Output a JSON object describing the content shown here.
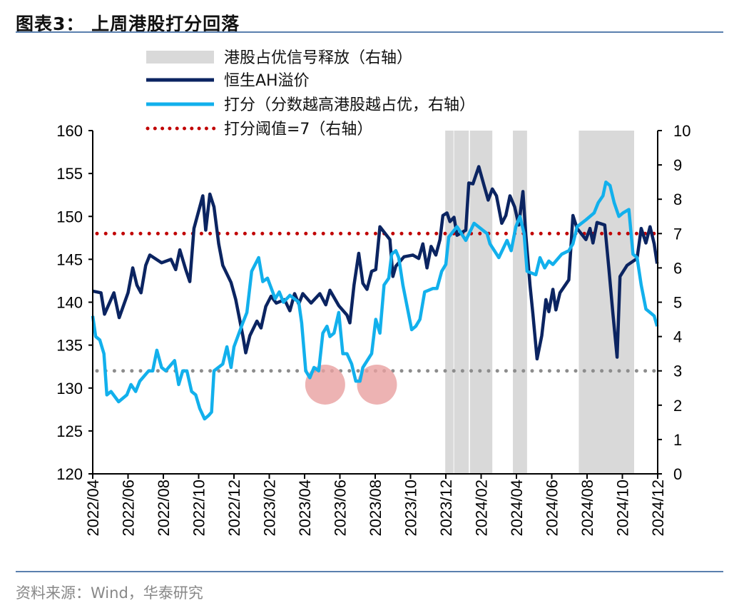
{
  "header": {
    "title": "图表3：  上周港股打分回落"
  },
  "footer": {
    "source": "资料来源：Wind，华泰研究"
  },
  "colors": {
    "ah_premium": "#0b2461",
    "score": "#12b0ec",
    "threshold": "#c00000",
    "low_line": "#8c8c8c",
    "shade": "#d9d9d9",
    "highlight": "#e9a0a0",
    "rule": "#5a7fae"
  },
  "chart_data": {
    "type": "line",
    "title": "",
    "legend_placement": "top",
    "legend": [
      {
        "key": "shade",
        "label": "港股占优信号释放（右轴）"
      },
      {
        "key": "ah",
        "label": "恒生AH溢价"
      },
      {
        "key": "score",
        "label": "打分（分数越高港股越占优，右轴）"
      },
      {
        "key": "threshold",
        "label": "打分阈值=7（右轴）"
      }
    ],
    "x_axis": {
      "range": [
        "2022-04",
        "2024-12"
      ],
      "ticks": [
        "2022/04",
        "2022/06",
        "2022/08",
        "2022/10",
        "2022/12",
        "2023/02",
        "2023/04",
        "2023/06",
        "2023/08",
        "2023/10",
        "2023/12",
        "2024/02",
        "2024/04",
        "2024/06",
        "2024/08",
        "2024/10",
        "2024/12"
      ]
    },
    "y_left": {
      "range": [
        120,
        160
      ],
      "ticks": [
        120,
        125,
        130,
        135,
        140,
        145,
        150,
        155,
        160
      ]
    },
    "y_right": {
      "range": [
        0,
        10
      ],
      "ticks": [
        0,
        1,
        2,
        3,
        4,
        5,
        6,
        7,
        8,
        9,
        10
      ]
    },
    "grid": false,
    "shaded_periods": [
      [
        "2023-11-30",
        "2023-12-14"
      ],
      [
        "2023-12-15",
        "2024-01-10"
      ],
      [
        "2024-01-12",
        "2024-02-20"
      ],
      [
        "2024-03-25",
        "2024-04-19"
      ],
      [
        "2024-07-17",
        "2024-10-21"
      ]
    ],
    "reference_lines": [
      {
        "axis": "right",
        "value": 7,
        "key": "threshold"
      },
      {
        "axis": "right",
        "value": 3,
        "key": "low_line"
      }
    ],
    "highlights": [
      {
        "date": "2023-05-06",
        "value": 2.6,
        "axis": "right"
      },
      {
        "date": "2023-08-04",
        "value": 2.6,
        "axis": "right"
      }
    ],
    "series": [
      {
        "name": "恒生AH溢价",
        "axis": "left",
        "key": "ah",
        "points": [
          [
            "2022-04-01",
            141.3
          ],
          [
            "2022-04-15",
            141.1
          ],
          [
            "2022-04-21",
            138.6
          ],
          [
            "2022-05-07",
            141.1
          ],
          [
            "2022-05-16",
            138.2
          ],
          [
            "2022-06-01",
            141.1
          ],
          [
            "2022-06-09",
            144.0
          ],
          [
            "2022-06-16",
            142.0
          ],
          [
            "2022-06-23",
            141.1
          ],
          [
            "2022-07-01",
            144.3
          ],
          [
            "2022-07-08",
            145.5
          ],
          [
            "2022-07-28",
            144.6
          ],
          [
            "2022-08-14",
            145.0
          ],
          [
            "2022-08-22",
            143.8
          ],
          [
            "2022-08-29",
            146.1
          ],
          [
            "2022-09-09",
            143.8
          ],
          [
            "2022-09-16",
            142.4
          ],
          [
            "2022-09-23",
            148.6
          ],
          [
            "2022-10-08",
            152.4
          ],
          [
            "2022-10-13",
            148.4
          ],
          [
            "2022-10-20",
            152.6
          ],
          [
            "2022-10-27",
            151.1
          ],
          [
            "2022-11-05",
            146.8
          ],
          [
            "2022-11-12",
            144.3
          ],
          [
            "2022-11-26",
            142.3
          ],
          [
            "2022-12-04",
            140.3
          ],
          [
            "2022-12-16",
            136.1
          ],
          [
            "2022-12-21",
            134.1
          ],
          [
            "2022-12-28",
            136.1
          ],
          [
            "2023-01-10",
            137.8
          ],
          [
            "2023-01-17",
            137.0
          ],
          [
            "2023-01-25",
            139.5
          ],
          [
            "2023-02-04",
            140.7
          ],
          [
            "2023-02-13",
            139.9
          ],
          [
            "2023-02-27",
            140.3
          ],
          [
            "2023-03-06",
            139.0
          ],
          [
            "2023-03-14",
            141.0
          ],
          [
            "2023-03-21",
            139.8
          ],
          [
            "2023-03-28",
            141.0
          ],
          [
            "2023-04-12",
            139.9
          ],
          [
            "2023-04-27",
            141.0
          ],
          [
            "2023-05-07",
            139.7
          ],
          [
            "2023-05-14",
            141.4
          ],
          [
            "2023-05-29",
            139.6
          ],
          [
            "2023-06-13",
            138.5
          ],
          [
            "2023-06-18",
            137.6
          ],
          [
            "2023-06-25",
            142.0
          ],
          [
            "2023-07-03",
            145.7
          ],
          [
            "2023-07-10",
            142.2
          ],
          [
            "2023-07-17",
            141.5
          ],
          [
            "2023-07-25",
            143.6
          ],
          [
            "2023-08-02",
            143.8
          ],
          [
            "2023-08-09",
            148.8
          ],
          [
            "2023-08-26",
            147.3
          ],
          [
            "2023-09-01",
            143.0
          ],
          [
            "2023-09-06",
            144.2
          ],
          [
            "2023-09-20",
            145.3
          ],
          [
            "2023-10-05",
            145.5
          ],
          [
            "2023-10-15",
            145.1
          ],
          [
            "2023-10-22",
            146.8
          ],
          [
            "2023-10-29",
            144.0
          ],
          [
            "2023-11-06",
            146.5
          ],
          [
            "2023-11-14",
            145.5
          ],
          [
            "2023-11-21",
            147.3
          ],
          [
            "2023-11-26",
            150.1
          ],
          [
            "2023-12-03",
            150.4
          ],
          [
            "2023-12-08",
            149.4
          ],
          [
            "2023-12-15",
            149.9
          ],
          [
            "2023-12-20",
            147.8
          ],
          [
            "2024-01-05",
            148.4
          ],
          [
            "2024-01-10",
            153.9
          ],
          [
            "2024-01-17",
            153.8
          ],
          [
            "2024-01-27",
            155.8
          ],
          [
            "2024-02-06",
            153.6
          ],
          [
            "2024-02-13",
            151.9
          ],
          [
            "2024-02-20",
            153.2
          ],
          [
            "2024-02-27",
            152.4
          ],
          [
            "2024-03-06",
            149.2
          ],
          [
            "2024-03-13",
            150.1
          ],
          [
            "2024-03-20",
            152.4
          ],
          [
            "2024-03-28",
            151.1
          ],
          [
            "2024-04-05",
            149.0
          ],
          [
            "2024-04-12",
            152.9
          ],
          [
            "2024-04-17",
            147.8
          ],
          [
            "2024-04-24",
            142.0
          ],
          [
            "2024-04-29",
            138.6
          ],
          [
            "2024-05-06",
            133.4
          ],
          [
            "2024-05-14",
            136.1
          ],
          [
            "2024-05-21",
            140.3
          ],
          [
            "2024-05-26",
            138.9
          ],
          [
            "2024-06-03",
            141.5
          ],
          [
            "2024-06-08",
            139.1
          ],
          [
            "2024-06-15",
            141.1
          ],
          [
            "2024-06-30",
            142.6
          ],
          [
            "2024-07-07",
            150.1
          ],
          [
            "2024-07-14",
            148.6
          ],
          [
            "2024-07-29",
            147.3
          ],
          [
            "2024-08-06",
            148.6
          ],
          [
            "2024-08-11",
            146.9
          ],
          [
            "2024-08-18",
            149.3
          ],
          [
            "2024-08-31",
            149.0
          ],
          [
            "2024-09-08",
            144.0
          ],
          [
            "2024-09-15",
            138.6
          ],
          [
            "2024-09-22",
            133.6
          ],
          [
            "2024-09-27",
            143.0
          ],
          [
            "2024-10-09",
            144.3
          ],
          [
            "2024-10-26",
            145.1
          ],
          [
            "2024-11-03",
            148.6
          ],
          [
            "2024-11-11",
            146.9
          ],
          [
            "2024-11-18",
            148.8
          ],
          [
            "2024-11-25",
            146.8
          ],
          [
            "2024-11-30",
            144.5
          ]
        ]
      },
      {
        "name": "打分（分数越高港股越占优，右轴）",
        "axis": "right",
        "key": "score",
        "points": [
          [
            "2022-04-01",
            4.6
          ],
          [
            "2022-04-06",
            4.0
          ],
          [
            "2022-04-13",
            3.9
          ],
          [
            "2022-04-20",
            3.5
          ],
          [
            "2022-04-25",
            2.3
          ],
          [
            "2022-05-02",
            2.4
          ],
          [
            "2022-05-15",
            2.1
          ],
          [
            "2022-05-29",
            2.3
          ],
          [
            "2022-06-06",
            2.6
          ],
          [
            "2022-06-14",
            2.4
          ],
          [
            "2022-06-21",
            2.7
          ],
          [
            "2022-07-06",
            3.0
          ],
          [
            "2022-07-13",
            3.0
          ],
          [
            "2022-07-20",
            3.6
          ],
          [
            "2022-07-28",
            3.1
          ],
          [
            "2022-08-05",
            3.0
          ],
          [
            "2022-08-20",
            3.3
          ],
          [
            "2022-08-27",
            2.6
          ],
          [
            "2022-09-04",
            3.0
          ],
          [
            "2022-09-11",
            3.0
          ],
          [
            "2022-09-19",
            2.4
          ],
          [
            "2022-09-26",
            2.3
          ],
          [
            "2022-10-03",
            1.9
          ],
          [
            "2022-10-11",
            1.6
          ],
          [
            "2022-10-18",
            1.7
          ],
          [
            "2022-10-23",
            1.8
          ],
          [
            "2022-10-27",
            3.0
          ],
          [
            "2022-11-12",
            3.2
          ],
          [
            "2022-11-19",
            3.7
          ],
          [
            "2022-11-26",
            3.1
          ],
          [
            "2022-12-01",
            3.7
          ],
          [
            "2022-12-16",
            4.4
          ],
          [
            "2022-12-23",
            4.7
          ],
          [
            "2022-12-31",
            5.9
          ],
          [
            "2023-01-13",
            6.3
          ],
          [
            "2023-01-20",
            5.6
          ],
          [
            "2023-01-28",
            5.7
          ],
          [
            "2023-02-11",
            5.1
          ],
          [
            "2023-02-18",
            5.3
          ],
          [
            "2023-02-25",
            5.0
          ],
          [
            "2023-03-06",
            5.2
          ],
          [
            "2023-03-21",
            5.0
          ],
          [
            "2023-03-26",
            4.4
          ],
          [
            "2023-04-03",
            3.0
          ],
          [
            "2023-04-10",
            2.8
          ],
          [
            "2023-04-17",
            3.1
          ],
          [
            "2023-04-25",
            3.0
          ],
          [
            "2023-05-02",
            4.1
          ],
          [
            "2023-05-09",
            4.3
          ],
          [
            "2023-05-14",
            4.0
          ],
          [
            "2023-05-21",
            4.1
          ],
          [
            "2023-05-29",
            4.7
          ],
          [
            "2023-06-06",
            3.5
          ],
          [
            "2023-06-13",
            3.5
          ],
          [
            "2023-06-21",
            3.2
          ],
          [
            "2023-06-28",
            2.7
          ],
          [
            "2023-07-05",
            2.7
          ],
          [
            "2023-07-10",
            3.1
          ],
          [
            "2023-07-25",
            3.5
          ],
          [
            "2023-08-02",
            4.5
          ],
          [
            "2023-08-09",
            4.1
          ],
          [
            "2023-08-16",
            5.5
          ],
          [
            "2023-08-24",
            5.7
          ],
          [
            "2023-08-29",
            6.4
          ],
          [
            "2023-09-06",
            6.5
          ],
          [
            "2023-09-11",
            6.3
          ],
          [
            "2023-09-18",
            5.5
          ],
          [
            "2023-09-25",
            4.9
          ],
          [
            "2023-10-03",
            4.2
          ],
          [
            "2023-10-10",
            4.3
          ],
          [
            "2023-10-17",
            4.5
          ],
          [
            "2023-10-25",
            5.3
          ],
          [
            "2023-11-09",
            5.4
          ],
          [
            "2023-11-16",
            5.4
          ],
          [
            "2023-11-24",
            5.9
          ],
          [
            "2023-12-01",
            6.1
          ],
          [
            "2023-12-06",
            6.9
          ],
          [
            "2023-12-20",
            7.2
          ],
          [
            "2024-01-05",
            6.8
          ],
          [
            "2024-01-19",
            7.3
          ],
          [
            "2024-02-11",
            7.0
          ],
          [
            "2024-02-16",
            6.7
          ],
          [
            "2024-03-01",
            6.3
          ],
          [
            "2024-03-15",
            6.8
          ],
          [
            "2024-03-22",
            6.5
          ],
          [
            "2024-03-30",
            7.2
          ],
          [
            "2024-04-07",
            7.5
          ],
          [
            "2024-04-14",
            7.0
          ],
          [
            "2024-04-19",
            5.9
          ],
          [
            "2024-05-04",
            5.8
          ],
          [
            "2024-05-11",
            6.3
          ],
          [
            "2024-05-19",
            6.0
          ],
          [
            "2024-05-26",
            6.2
          ],
          [
            "2024-06-03",
            6.1
          ],
          [
            "2024-06-18",
            6.4
          ],
          [
            "2024-06-30",
            6.5
          ],
          [
            "2024-07-07",
            6.7
          ],
          [
            "2024-07-14",
            7.2
          ],
          [
            "2024-07-29",
            7.4
          ],
          [
            "2024-08-13",
            7.6
          ],
          [
            "2024-08-20",
            7.9
          ],
          [
            "2024-08-28",
            8.1
          ],
          [
            "2024-09-03",
            8.5
          ],
          [
            "2024-09-10",
            8.4
          ],
          [
            "2024-09-17",
            7.9
          ],
          [
            "2024-09-25",
            7.5
          ],
          [
            "2024-10-02",
            7.6
          ],
          [
            "2024-10-12",
            7.7
          ],
          [
            "2024-10-19",
            6.4
          ],
          [
            "2024-10-26",
            6.3
          ],
          [
            "2024-11-03",
            5.5
          ],
          [
            "2024-11-11",
            4.8
          ],
          [
            "2024-11-18",
            4.7
          ],
          [
            "2024-11-25",
            4.6
          ],
          [
            "2024-11-30",
            4.3
          ]
        ]
      }
    ]
  }
}
